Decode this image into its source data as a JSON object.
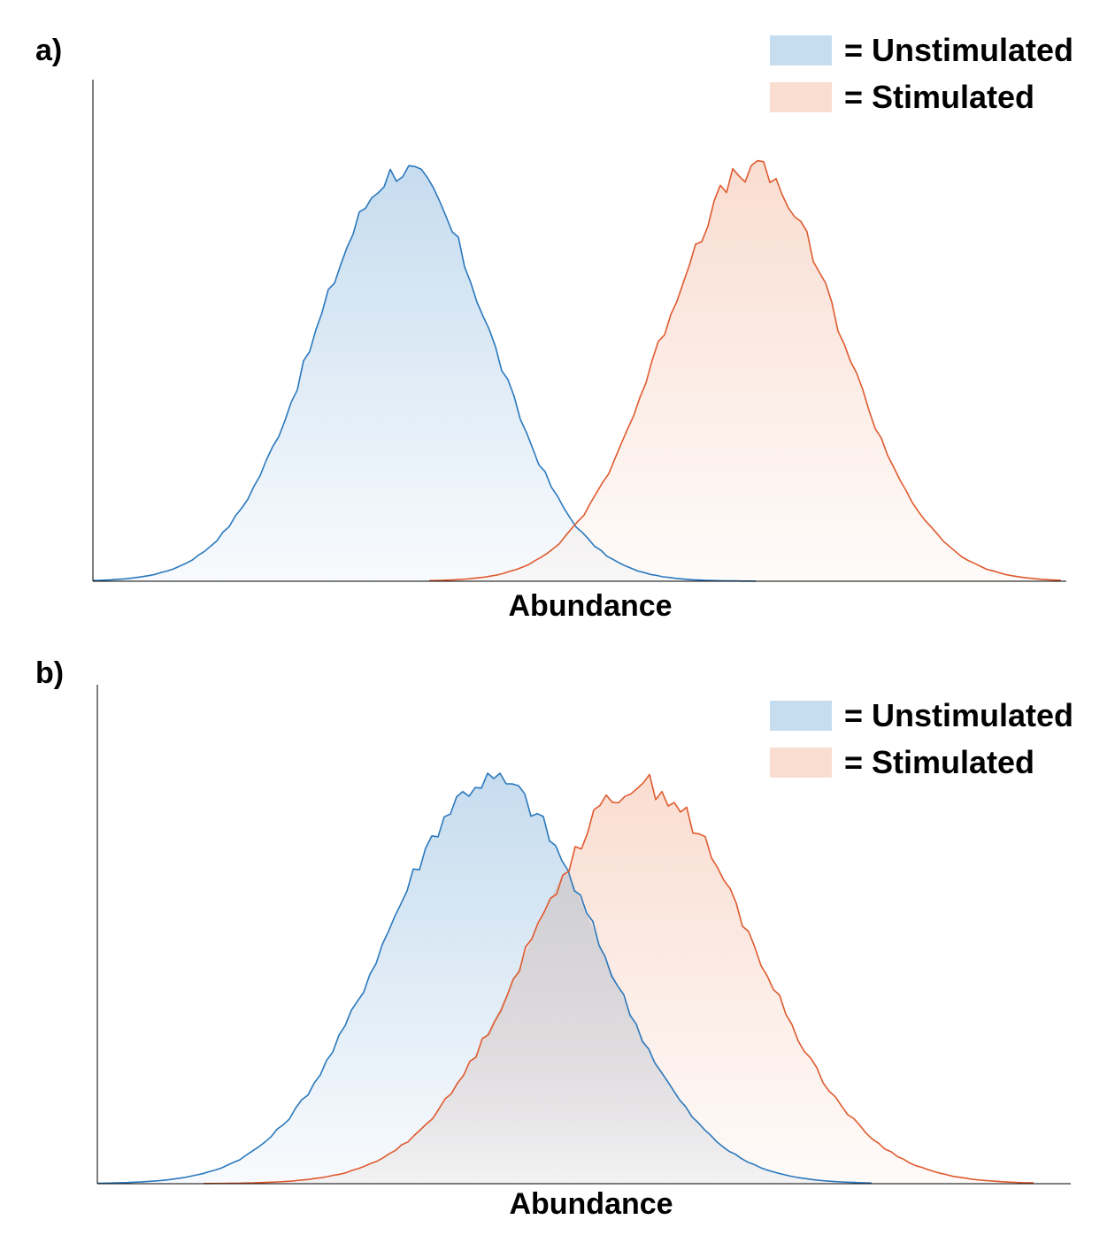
{
  "colors": {
    "unstim_line": "#2a78bd",
    "unstim_fill": "#c6dcef",
    "stim_line": "#df5a2e",
    "stim_fill": "#f9ddd1",
    "overlap_fill": "#cfd0d5",
    "axis": "#000000"
  },
  "chart_data": [
    {
      "type": "area",
      "panel_label": "a)",
      "xlabel": "Abundance",
      "ylabel": "",
      "title": "",
      "xlim": [
        0,
        1100
      ],
      "ylim": [
        0,
        1
      ],
      "grid": false,
      "legend_placement": "top-right",
      "series": [
        {
          "name": "= Unstimulated",
          "mean": 350,
          "sd": 98,
          "peak": 0.82,
          "x_range": [
            0,
            750
          ],
          "overlap": false
        },
        {
          "name": "= Stimulated",
          "mean": 745,
          "sd": 100,
          "peak": 0.82,
          "x_range": [
            380,
            1100
          ],
          "overlap": false
        }
      ]
    },
    {
      "type": "area",
      "panel_label": "b)",
      "xlabel": "Abundance",
      "ylabel": "",
      "title": "",
      "xlim": [
        0,
        1100
      ],
      "ylim": [
        0,
        1
      ],
      "grid": false,
      "legend_placement": "top-right",
      "series": [
        {
          "name": "= Unstimulated",
          "mean": 445,
          "sd": 120,
          "peak": 0.81,
          "x_range": [
            0,
            880
          ],
          "overlap": true
        },
        {
          "name": "= Stimulated",
          "mean": 615,
          "sd": 125,
          "peak": 0.8,
          "x_range": [
            120,
            1060
          ],
          "overlap": true
        }
      ]
    }
  ]
}
